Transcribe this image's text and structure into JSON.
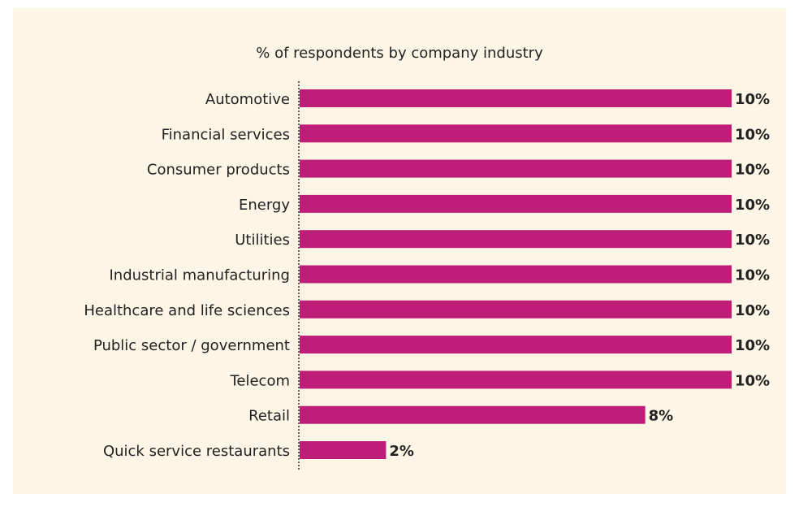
{
  "chart_data": {
    "type": "bar",
    "orientation": "horizontal",
    "title": "% of respondents by company industry",
    "categories": [
      "Automotive",
      "Financial services",
      "Consumer products",
      "Energy",
      "Utilities",
      "Industrial manufacturing",
      "Healthcare and life sciences",
      "Public sector / government",
      "Telecom",
      "Retail",
      "Quick service restaurants"
    ],
    "values": [
      10,
      10,
      10,
      10,
      10,
      10,
      10,
      10,
      10,
      8,
      2
    ],
    "value_labels": [
      "10%",
      "10%",
      "10%",
      "10%",
      "10%",
      "10%",
      "10%",
      "10%",
      "10%",
      "8%",
      "2%"
    ],
    "color": "#be1e77"
  }
}
